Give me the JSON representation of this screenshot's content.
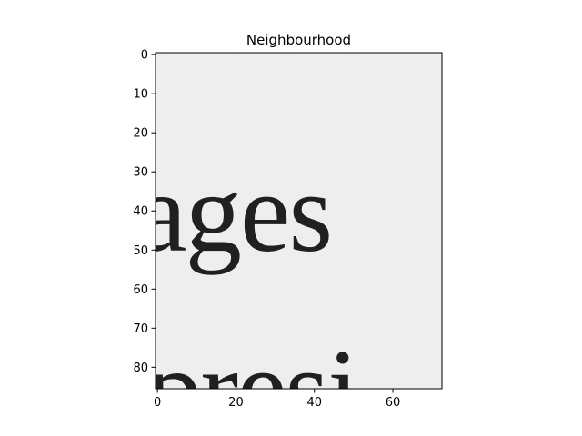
{
  "chart_data": {
    "type": "heatmap",
    "title": "Neighbourhood",
    "xlabel": "",
    "ylabel": "",
    "xlim": [
      -0.5,
      72.5
    ],
    "ylim": [
      85.5,
      -0.5
    ],
    "x_ticks": [
      0,
      20,
      40,
      60
    ],
    "y_ticks": [
      0,
      10,
      20,
      30,
      40,
      50,
      60,
      70,
      80
    ],
    "x_tick_labels": [
      "0",
      "20",
      "40",
      "60"
    ],
    "y_tick_labels": [
      "0",
      "10",
      "20",
      "30",
      "40",
      "50",
      "60",
      "70",
      "80"
    ],
    "colormap": "gray",
    "grid": false,
    "image_content": {
      "description_lines": [
        "ages",
        "presi"
      ],
      "background": "#ececec",
      "ink": "#202020"
    }
  }
}
